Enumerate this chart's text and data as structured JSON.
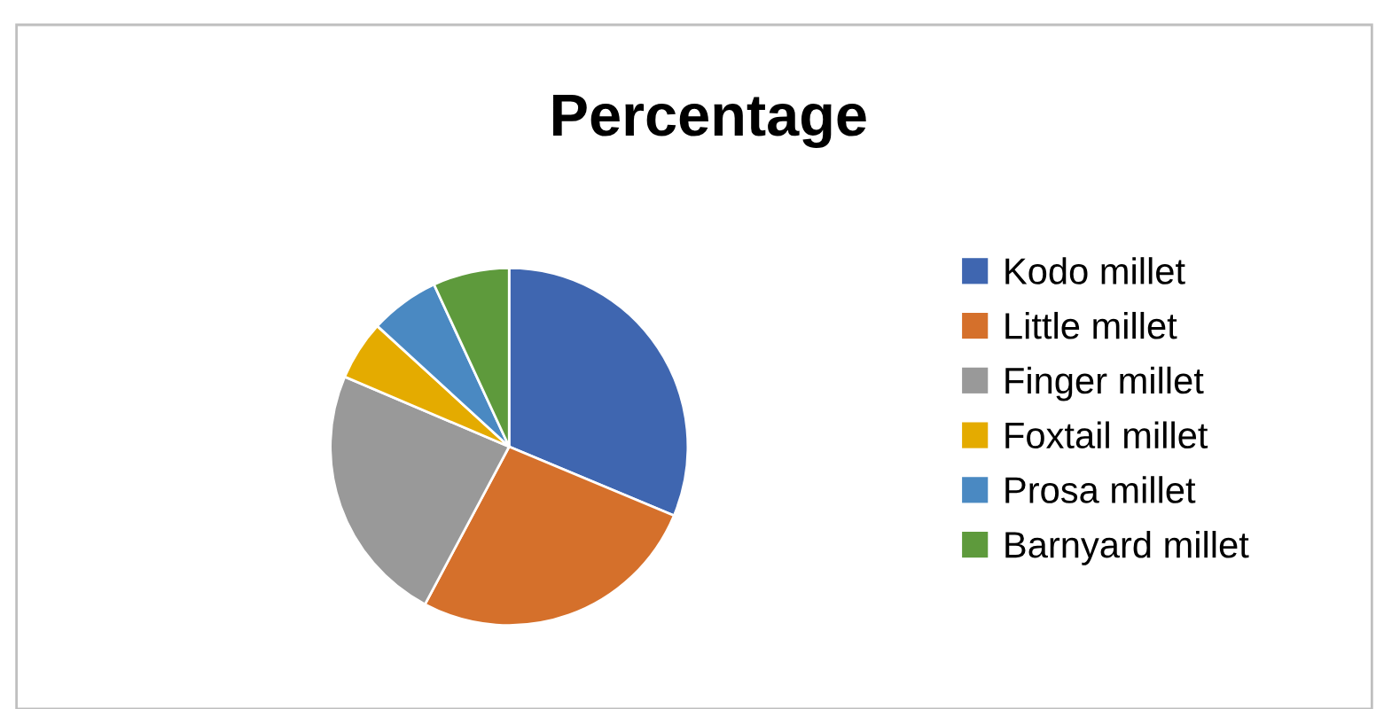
{
  "chart_data": {
    "type": "pie",
    "title": "Percentage",
    "categories": [
      "Kodo millet",
      "Little millet",
      "Finger millet",
      "Foxtail millet",
      "Prosa millet",
      "Barnyard millet"
    ],
    "values": [
      31.3,
      26.5,
      23.6,
      5.4,
      6.3,
      6.9
    ],
    "colors": [
      "#3f66b0",
      "#d5702b",
      "#999999",
      "#e4ab00",
      "#4a89c2",
      "#5e9a3c"
    ],
    "legend": "right"
  }
}
